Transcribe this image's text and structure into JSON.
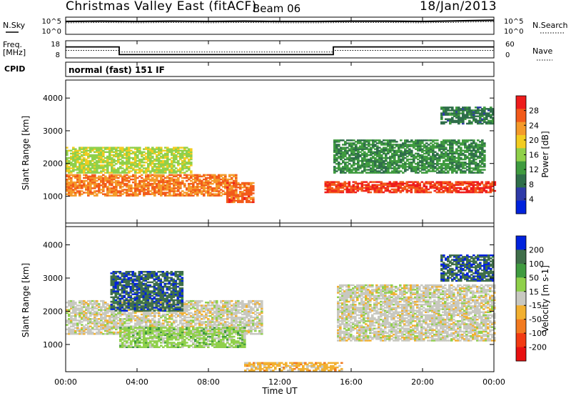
{
  "header": {
    "station": "Christmas Valley East (fitACF)",
    "beam": "Beam 06",
    "date": "18/Jan/2013",
    "mode": "normal (fast) 151 IF"
  },
  "noise_panel": {
    "left_label": "N.Sky",
    "right_label": "N.Search",
    "left_ticks": [
      "10^5",
      "10^0"
    ],
    "right_ticks": [
      "10^5",
      "10^0"
    ]
  },
  "freq_panel": {
    "left_label_1": "Freq.",
    "left_label_2": "[MHz]",
    "left_ticks": [
      "18",
      "8"
    ],
    "right_label": "Nave",
    "right_ticks": [
      "60",
      "0"
    ],
    "cpid_label": "CPID"
  },
  "colors": {
    "power": [
      "#0022dd",
      "#2e3aa8",
      "#2f6e4a",
      "#3f9b3f",
      "#8fd04a",
      "#f2cc20",
      "#f49a2a",
      "#f25a1a",
      "#ee1c1c"
    ],
    "velocity": [
      "#0022dd",
      "#3f6e4a",
      "#3f9b3f",
      "#8fd04a",
      "#c8c8c0",
      "#f2b030",
      "#f27a20",
      "#f23a12",
      "#e81010"
    ]
  },
  "chart_data": [
    {
      "type": "heatmap",
      "title": "Power",
      "xlabel": "Time UT",
      "ylabel": "Slant Range [km]",
      "xlim": [
        "00:00",
        "24:00"
      ],
      "ylim": [
        180,
        4550
      ],
      "x_ticks": [
        "00:00",
        "04:00",
        "08:00",
        "12:00",
        "16:00",
        "20:00",
        "00:00"
      ],
      "y_ticks": [
        1000,
        2000,
        3000,
        4000
      ],
      "colorbar": {
        "label": "Power [dB]",
        "ticks": [
          4,
          8,
          12,
          16,
          20,
          24,
          28
        ],
        "range": [
          0,
          30
        ]
      },
      "features": [
        {
          "t_start": 0.0,
          "t_end": 9.5,
          "range_km": [
            1000,
            1650
          ],
          "value_db": 24
        },
        {
          "t_start": 0.0,
          "t_end": 7.0,
          "range_km": [
            1700,
            2500
          ],
          "value_db": 16
        },
        {
          "t_start": 9.0,
          "t_end": 10.5,
          "range_km": [
            800,
            1400
          ],
          "value_db": 26
        },
        {
          "t_start": 14.5,
          "t_end": 24.0,
          "range_km": [
            1100,
            1450
          ],
          "value_db": 28
        },
        {
          "t_start": 15.0,
          "t_end": 23.5,
          "range_km": [
            1700,
            2700
          ],
          "value_db": 10
        },
        {
          "t_start": 21.0,
          "t_end": 24.0,
          "range_km": [
            3200,
            3700
          ],
          "value_db": 8
        }
      ]
    },
    {
      "type": "heatmap",
      "title": "Velocity",
      "xlabel": "Time UT",
      "ylabel": "Slant Range [km]",
      "xlim": [
        "00:00",
        "24:00"
      ],
      "ylim": [
        180,
        4550
      ],
      "x_ticks": [
        "00:00",
        "04:00",
        "08:00",
        "12:00",
        "16:00",
        "20:00",
        "00:00"
      ],
      "y_ticks": [
        1000,
        2000,
        3000,
        4000
      ],
      "colorbar": {
        "label": "Velocity [m s-1]",
        "ticks": [
          200,
          100,
          50,
          15,
          -15,
          -50,
          -100,
          -200
        ],
        "range": [
          -250,
          250
        ]
      },
      "features": [
        {
          "t_start": 0.0,
          "t_end": 11.0,
          "range_km": [
            1300,
            2300
          ],
          "value_ms": 0
        },
        {
          "t_start": 2.5,
          "t_end": 6.5,
          "range_km": [
            2000,
            3200
          ],
          "value_ms": 200
        },
        {
          "t_start": 3.0,
          "t_end": 10.0,
          "range_km": [
            900,
            1500
          ],
          "value_ms": 60
        },
        {
          "t_start": 15.2,
          "t_end": 24.0,
          "range_km": [
            1100,
            2800
          ],
          "value_ms": 0
        },
        {
          "t_start": 21.0,
          "t_end": 24.0,
          "range_km": [
            2900,
            3700
          ],
          "value_ms": 200
        },
        {
          "t_start": 10.0,
          "t_end": 15.5,
          "range_km": [
            200,
            450
          ],
          "value_ms": -60
        }
      ]
    },
    {
      "type": "line",
      "title": "N.Sky",
      "series": [
        {
          "name": "N.Sky",
          "x_hours": [
            0,
            2,
            4,
            6,
            8,
            10,
            12,
            14,
            16,
            18,
            20,
            22,
            24
          ],
          "values_log10": [
            4.0,
            4.1,
            4.0,
            4.1,
            4.0,
            4.1,
            4.0,
            4.0,
            4.1,
            4.1,
            4.0,
            4.2,
            4.4
          ]
        }
      ]
    },
    {
      "type": "line",
      "title": "Freq.",
      "series": [
        {
          "name": "Freq.",
          "x_hours": [
            0,
            3.0,
            3.0,
            15.0,
            15.0,
            24
          ],
          "values": [
            16,
            16,
            10,
            10,
            16,
            16
          ]
        },
        {
          "name": "Nave",
          "x_hours": [
            0,
            3.0,
            3.0,
            15.0,
            15.0,
            24
          ],
          "values": [
            26,
            26,
            20,
            20,
            26,
            26
          ]
        }
      ]
    }
  ]
}
